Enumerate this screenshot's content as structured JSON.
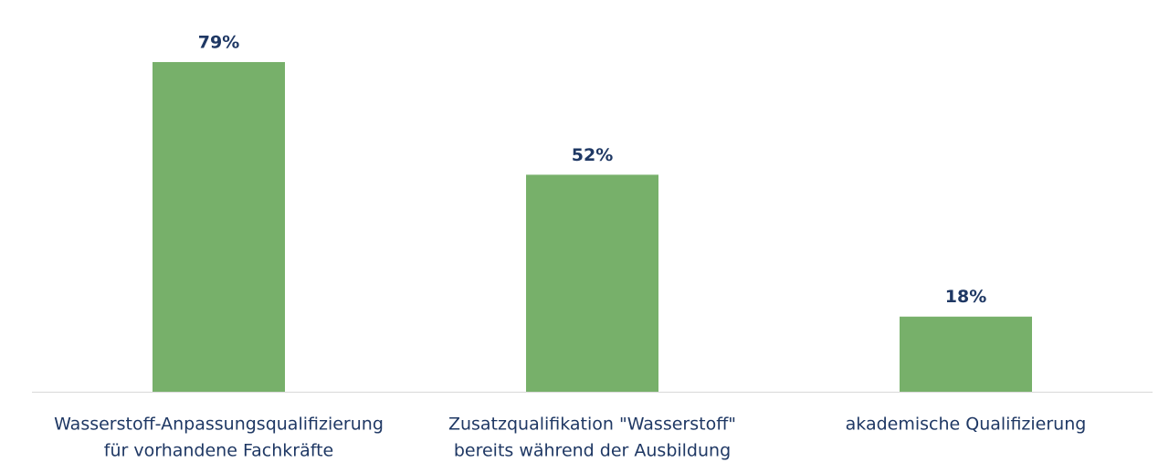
{
  "chart_data": {
    "type": "bar",
    "categories": [
      [
        "Wasserstoff-Anpassungsqualifizierung",
        "für vorhandene Fachkräfte"
      ],
      [
        "Zusatzqualifikation \"Wasserstoff\"",
        "bereits während der Ausbildung"
      ],
      [
        "akademische Qualifizierung"
      ]
    ],
    "values": [
      79,
      52,
      18
    ],
    "value_labels": [
      "79%",
      "52%",
      "18%"
    ],
    "color": "#77b06a"
  }
}
